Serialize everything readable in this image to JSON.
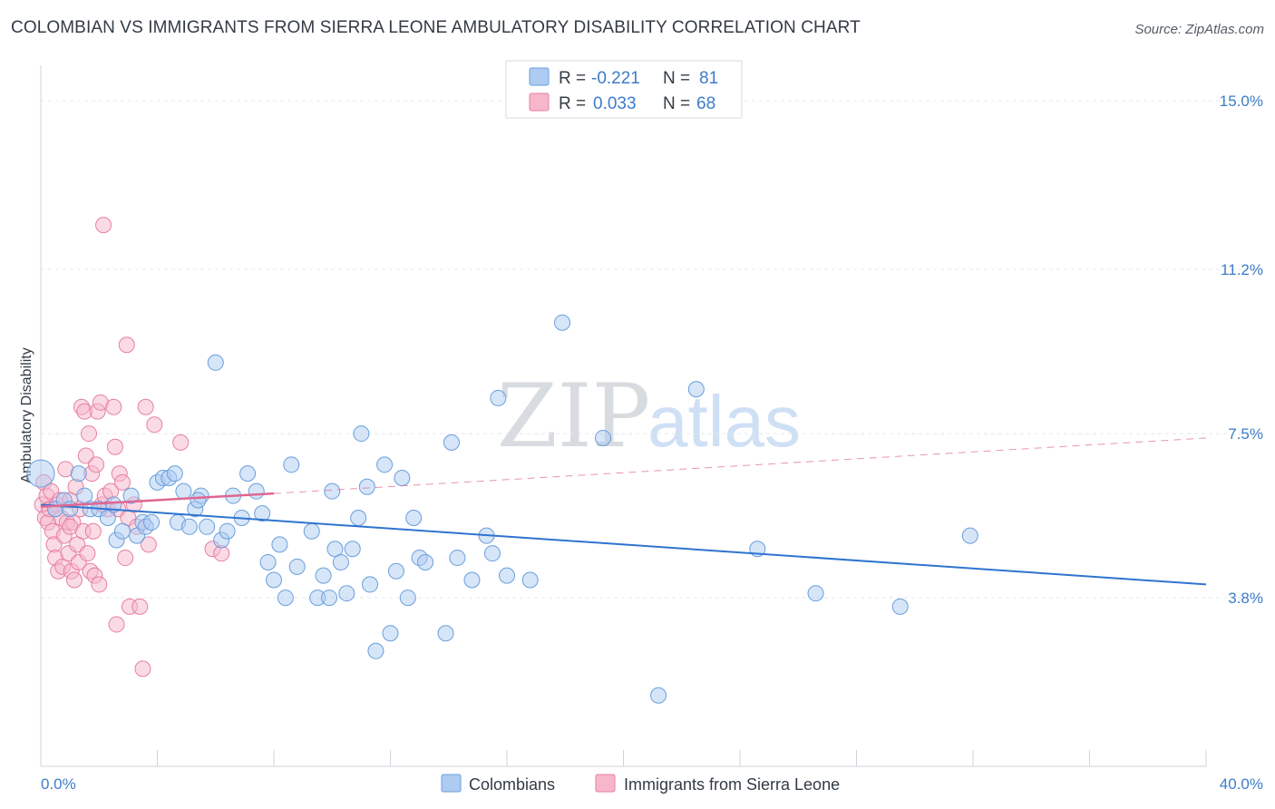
{
  "title": "COLOMBIAN VS IMMIGRANTS FROM SIERRA LEONE AMBULATORY DISABILITY CORRELATION CHART",
  "source": "Source: ZipAtlas.com",
  "watermark": {
    "zip": "ZIP",
    "atlas": "atlas"
  },
  "colors": {
    "blue_fill": "#aecbf2",
    "blue_stroke": "#6a9fdc",
    "blue_line": "#2f74cf",
    "pink_fill": "#f6b7cb",
    "pink_stroke": "#e77fa2",
    "pink_line": "#e06692",
    "grid": "#e4e7ec",
    "axis_text": "#3d7cc9"
  },
  "legend": {
    "rows": [
      {
        "r_label": "R =",
        "r_value": "-0.221",
        "n_label": "N =",
        "n_value": "81"
      },
      {
        "r_label": "R =",
        "r_value": "0.033",
        "n_label": "N =",
        "n_value": "68"
      }
    ]
  },
  "chart_data": {
    "type": "scatter",
    "title": "COLOMBIAN VS IMMIGRANTS FROM SIERRA LEONE AMBULATORY DISABILITY CORRELATION CHART",
    "xlabel": "",
    "ylabel": "Ambulatory Disability",
    "xlim": [
      0,
      40
    ],
    "ylim": [
      0,
      15.8
    ],
    "x_tick_labels": [
      "0.0%",
      "40.0%"
    ],
    "y_ticks": [
      3.8,
      7.5,
      11.2,
      15.0
    ],
    "y_tick_labels": [
      "3.8%",
      "7.5%",
      "11.2%",
      "15.0%"
    ],
    "grid": true,
    "legend_position": "top-center",
    "series": [
      {
        "name": "Colombians",
        "color": "#aecbf2",
        "trend": {
          "x": [
            0,
            40
          ],
          "y": [
            5.9,
            4.1
          ]
        },
        "points": [
          [
            0.0,
            6.6
          ],
          [
            0.5,
            5.8
          ],
          [
            0.8,
            6.0
          ],
          [
            1.0,
            5.8
          ],
          [
            1.3,
            6.6
          ],
          [
            1.5,
            6.1
          ],
          [
            1.7,
            5.8
          ],
          [
            2.0,
            5.8
          ],
          [
            2.3,
            5.6
          ],
          [
            2.5,
            5.9
          ],
          [
            2.6,
            5.1
          ],
          [
            2.8,
            5.3
          ],
          [
            3.1,
            6.1
          ],
          [
            3.3,
            5.2
          ],
          [
            3.5,
            5.5
          ],
          [
            3.6,
            5.4
          ],
          [
            3.8,
            5.5
          ],
          [
            4.0,
            6.4
          ],
          [
            4.2,
            6.5
          ],
          [
            4.4,
            6.5
          ],
          [
            4.6,
            6.6
          ],
          [
            4.7,
            5.5
          ],
          [
            4.9,
            6.2
          ],
          [
            5.1,
            5.4
          ],
          [
            5.3,
            5.8
          ],
          [
            5.5,
            6.1
          ],
          [
            5.7,
            5.4
          ],
          [
            6.0,
            9.1
          ],
          [
            6.2,
            5.1
          ],
          [
            6.4,
            5.3
          ],
          [
            6.6,
            6.1
          ],
          [
            6.9,
            5.6
          ],
          [
            7.1,
            6.6
          ],
          [
            7.4,
            6.2
          ],
          [
            7.6,
            5.7
          ],
          [
            7.8,
            4.6
          ],
          [
            8.0,
            4.2
          ],
          [
            8.2,
            5.0
          ],
          [
            8.4,
            3.8
          ],
          [
            8.6,
            6.8
          ],
          [
            8.8,
            4.5
          ],
          [
            9.3,
            5.3
          ],
          [
            9.5,
            3.8
          ],
          [
            9.7,
            4.3
          ],
          [
            9.9,
            3.8
          ],
          [
            10.1,
            4.9
          ],
          [
            10.3,
            4.6
          ],
          [
            10.5,
            3.9
          ],
          [
            10.7,
            4.9
          ],
          [
            10.9,
            5.6
          ],
          [
            11.0,
            7.5
          ],
          [
            11.2,
            6.3
          ],
          [
            11.3,
            4.1
          ],
          [
            11.5,
            2.6
          ],
          [
            11.8,
            6.8
          ],
          [
            12.0,
            3.0
          ],
          [
            12.2,
            4.4
          ],
          [
            12.4,
            6.5
          ],
          [
            12.6,
            3.8
          ],
          [
            12.8,
            5.6
          ],
          [
            13.0,
            4.7
          ],
          [
            13.2,
            4.6
          ],
          [
            13.9,
            3.0
          ],
          [
            14.1,
            7.3
          ],
          [
            14.3,
            4.7
          ],
          [
            14.8,
            4.2
          ],
          [
            15.3,
            5.2
          ],
          [
            15.5,
            4.8
          ],
          [
            15.7,
            8.3
          ],
          [
            16.0,
            4.3
          ],
          [
            16.8,
            4.2
          ],
          [
            17.9,
            10.0
          ],
          [
            19.3,
            7.4
          ],
          [
            21.2,
            1.6
          ],
          [
            22.5,
            8.5
          ],
          [
            24.6,
            4.9
          ],
          [
            26.6,
            3.9
          ],
          [
            29.5,
            3.6
          ],
          [
            31.9,
            5.2
          ],
          [
            10.0,
            6.2
          ],
          [
            5.4,
            6.0
          ]
        ]
      },
      {
        "name": "Immigrants from Sierra Leone",
        "color": "#f6b7cb",
        "trend": {
          "x": [
            0,
            8
          ],
          "y": [
            5.85,
            6.15
          ],
          "dashed_extension": {
            "x": [
              8,
              40
            ],
            "y": [
              6.15,
              7.4
            ]
          }
        },
        "points": [
          [
            0.05,
            5.9
          ],
          [
            0.1,
            6.4
          ],
          [
            0.15,
            5.6
          ],
          [
            0.2,
            6.1
          ],
          [
            0.25,
            5.5
          ],
          [
            0.3,
            5.8
          ],
          [
            0.35,
            6.2
          ],
          [
            0.4,
            5.3
          ],
          [
            0.45,
            5.0
          ],
          [
            0.5,
            4.7
          ],
          [
            0.55,
            5.9
          ],
          [
            0.6,
            4.4
          ],
          [
            0.65,
            6.0
          ],
          [
            0.7,
            5.6
          ],
          [
            0.75,
            4.5
          ],
          [
            0.8,
            5.2
          ],
          [
            0.85,
            6.7
          ],
          [
            0.9,
            5.5
          ],
          [
            0.95,
            4.8
          ],
          [
            1.0,
            6.0
          ],
          [
            1.05,
            4.4
          ],
          [
            1.1,
            5.5
          ],
          [
            1.15,
            4.2
          ],
          [
            1.2,
            6.3
          ],
          [
            1.25,
            5.0
          ],
          [
            1.3,
            4.6
          ],
          [
            1.35,
            5.8
          ],
          [
            1.4,
            8.1
          ],
          [
            1.45,
            5.3
          ],
          [
            1.5,
            8.0
          ],
          [
            1.55,
            7.0
          ],
          [
            1.6,
            4.8
          ],
          [
            1.65,
            7.5
          ],
          [
            1.7,
            4.4
          ],
          [
            1.75,
            6.6
          ],
          [
            1.8,
            5.3
          ],
          [
            1.85,
            4.3
          ],
          [
            1.9,
            6.8
          ],
          [
            1.95,
            8.0
          ],
          [
            2.0,
            4.1
          ],
          [
            2.05,
            8.2
          ],
          [
            2.1,
            5.9
          ],
          [
            2.15,
            12.2
          ],
          [
            2.2,
            6.1
          ],
          [
            2.3,
            5.8
          ],
          [
            2.4,
            6.2
          ],
          [
            2.5,
            8.1
          ],
          [
            2.55,
            7.2
          ],
          [
            2.6,
            3.2
          ],
          [
            2.65,
            5.8
          ],
          [
            2.7,
            6.6
          ],
          [
            2.8,
            6.4
          ],
          [
            2.9,
            4.7
          ],
          [
            2.95,
            9.5
          ],
          [
            3.0,
            5.6
          ],
          [
            3.05,
            3.6
          ],
          [
            3.2,
            5.9
          ],
          [
            3.3,
            5.4
          ],
          [
            3.4,
            3.6
          ],
          [
            3.5,
            2.2
          ],
          [
            3.6,
            8.1
          ],
          [
            3.7,
            5.0
          ],
          [
            3.9,
            7.7
          ],
          [
            4.8,
            7.3
          ],
          [
            5.9,
            4.9
          ],
          [
            6.2,
            4.8
          ],
          [
            0.5,
            5.8
          ],
          [
            1.0,
            5.4
          ]
        ]
      }
    ]
  },
  "bottom_legend": [
    {
      "label": "Colombians"
    },
    {
      "label": "Immigrants from Sierra Leone"
    }
  ]
}
